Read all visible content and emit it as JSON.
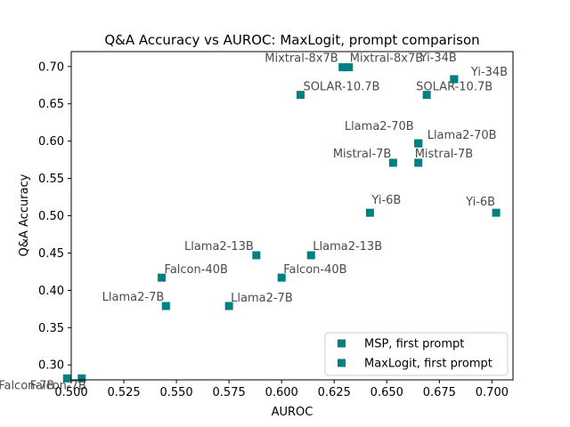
{
  "chart_data": {
    "type": "scatter",
    "title": "Q&A Accuracy vs AUROC: MaxLogit, prompt comparison",
    "xlabel": "AUROC",
    "ylabel": "Q&A Accuracy",
    "xlim": [
      0.5,
      0.71
    ],
    "ylim": [
      0.28,
      0.72
    ],
    "x_ticks": [
      "0.500",
      "0.525",
      "0.550",
      "0.575",
      "0.600",
      "0.625",
      "0.650",
      "0.675",
      "0.700"
    ],
    "y_ticks": [
      "0.30",
      "0.35",
      "0.40",
      "0.45",
      "0.50",
      "0.55",
      "0.60",
      "0.65",
      "0.70"
    ],
    "grid": false,
    "legend_position": "lower-right",
    "marker_color": "#008080",
    "series": [
      {
        "name": "MSP, first prompt",
        "points": [
          {
            "label": "Falcon-7B",
            "x": 0.498,
            "y": 0.282
          },
          {
            "label": "Llama2-7B",
            "x": 0.545,
            "y": 0.379
          },
          {
            "label": "Falcon-40B",
            "x": 0.543,
            "y": 0.417
          },
          {
            "label": "Llama2-13B",
            "x": 0.588,
            "y": 0.447
          },
          {
            "label": "Yi-6B",
            "x": 0.642,
            "y": 0.504
          },
          {
            "label": "Mistral-7B",
            "x": 0.653,
            "y": 0.571
          },
          {
            "label": "Llama2-70B",
            "x": 0.665,
            "y": 0.597
          },
          {
            "label": "SOLAR-10.7B",
            "x": 0.609,
            "y": 0.662
          },
          {
            "label": "Mixtral-8x7B",
            "x": 0.629,
            "y": 0.699
          },
          {
            "label": "Yi-34B",
            "x": 0.682,
            "y": 0.683
          }
        ]
      },
      {
        "name": "MaxLogit, first prompt",
        "points": [
          {
            "label": "Falcon-7B",
            "x": 0.505,
            "y": 0.282
          },
          {
            "label": "Llama2-7B",
            "x": 0.575,
            "y": 0.379
          },
          {
            "label": "Falcon-40B",
            "x": 0.6,
            "y": 0.417
          },
          {
            "label": "Llama2-13B",
            "x": 0.614,
            "y": 0.447
          },
          {
            "label": "Yi-6B",
            "x": 0.702,
            "y": 0.504
          },
          {
            "label": "Mistral-7B",
            "x": 0.665,
            "y": 0.571
          },
          {
            "label": "Llama2-70B",
            "x": 0.665,
            "y": 0.597
          },
          {
            "label": "SOLAR-10.7B",
            "x": 0.669,
            "y": 0.662
          },
          {
            "label": "Mixtral-8x7B",
            "x": 0.632,
            "y": 0.699
          },
          {
            "label": "Yi-34B",
            "x": 0.682,
            "y": 0.683
          }
        ]
      }
    ]
  }
}
